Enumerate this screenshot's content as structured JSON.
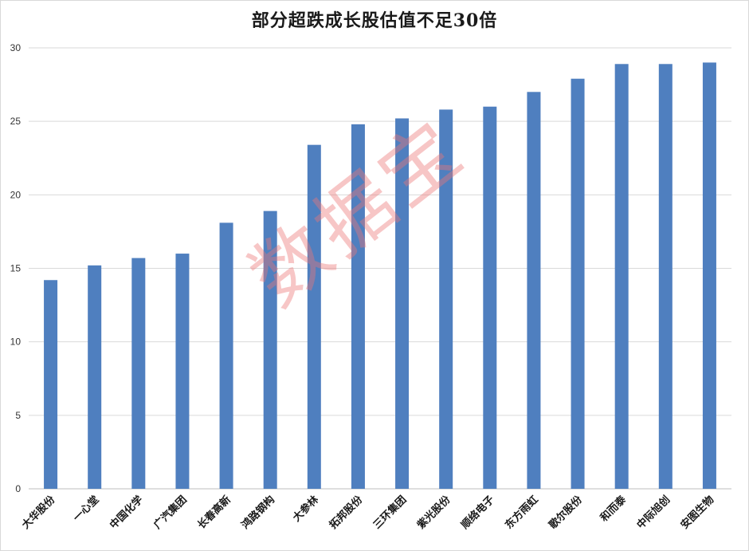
{
  "chart_data": {
    "type": "bar",
    "title": "部分超跌成长股估值不足30倍",
    "categories": [
      "大华股份",
      "一心堂",
      "中国化学",
      "广汽集团",
      "长春高新",
      "鸿路钢构",
      "大参林",
      "拓邦股份",
      "三环集团",
      "紫光股份",
      "顺络电子",
      "东方雨虹",
      "歌尔股份",
      "和而泰",
      "中际旭创",
      "安图生物"
    ],
    "values": [
      14.2,
      15.2,
      15.7,
      16.0,
      18.1,
      18.9,
      23.4,
      24.8,
      25.2,
      25.8,
      26.0,
      27.0,
      27.9,
      28.9,
      28.9,
      29.0
    ],
    "ylim": [
      0,
      30
    ],
    "yticks": [
      0,
      5,
      10,
      15,
      20,
      25,
      30
    ],
    "grid": true,
    "bar_color": "#4f7fbf",
    "xlabel": "",
    "ylabel": ""
  },
  "watermark": "数据宝"
}
